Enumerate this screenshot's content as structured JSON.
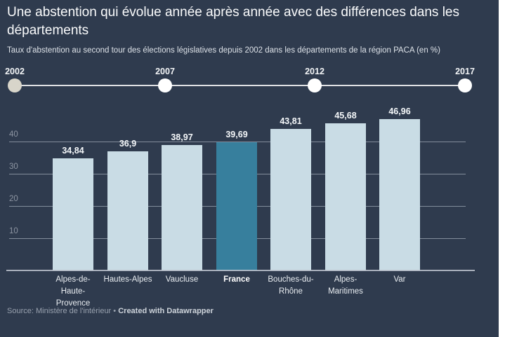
{
  "header": {
    "title": "Une abstention qui évolue année après année avec des différences dans les départements",
    "subtitle": "Taux d'abstention au second tour des élections législatives depuis 2002 dans les départements de la région PACA (en %)"
  },
  "timeline": {
    "years": [
      "2002",
      "2007",
      "2012",
      "2017"
    ],
    "active_year": "2002",
    "active_dot_color": "#d8d5ca",
    "dot_color": "#ffffff"
  },
  "chart_data": {
    "type": "bar",
    "title": "Une abstention qui évolue année après année avec des différences dans les départements",
    "subtitle": "Taux d'abstention au second tour des élections législatives depuis 2002 dans les départements de la région PACA (en %)",
    "categories": [
      "Alpes-de-Haute-Provence",
      "Hautes-Alpes",
      "Vaucluse",
      "France",
      "Bouches-du-Rhône",
      "Alpes-Maritimes",
      "Var"
    ],
    "category_lines": [
      [
        "Alpes-de-",
        "Haute-",
        "Provence"
      ],
      [
        "Hautes-Alpes"
      ],
      [
        "Vaucluse"
      ],
      [
        "France"
      ],
      [
        "Bouches-du-",
        "Rhône"
      ],
      [
        "Alpes-",
        "Maritimes"
      ],
      [
        "Var"
      ]
    ],
    "values": [
      34.84,
      36.9,
      38.97,
      39.69,
      43.81,
      45.68,
      46.96
    ],
    "value_labels": [
      "34,84",
      "36,9",
      "38,97",
      "39,69",
      "43,81",
      "45,68",
      "46,96"
    ],
    "highlight_category": "France",
    "xlabel": "",
    "ylabel": "",
    "y_ticks": [
      10,
      20,
      30,
      40
    ],
    "ylim": [
      0,
      50
    ],
    "grid": true,
    "legend": "none",
    "bar_color": "#c9dce5",
    "highlight_color": "#377f9d",
    "background_color": "#2f3b4e"
  },
  "footer": {
    "source": "Source: Ministère de l'intérieur",
    "separator": "•",
    "credit": "Created with Datawrapper"
  }
}
